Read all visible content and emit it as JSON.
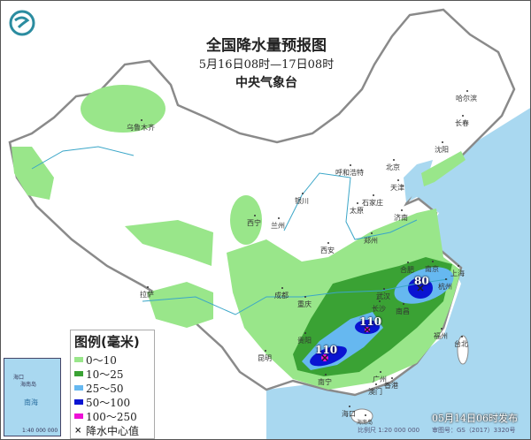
{
  "header": {
    "title": "全国降水量预报图",
    "period": "5月16日08时—17日08时",
    "agency": "中央气象台",
    "logo": "cma-logo"
  },
  "colors": {
    "sea": "#a9d8f0",
    "land": "#ffffff",
    "border": "#8a8a8a",
    "river": "#3aa6c8",
    "c0_10": "#99e68a",
    "c10_25": "#3aa234",
    "c25_50": "#66b8f0",
    "c50_100": "#0a14d2",
    "c100_250": "#ee10d6"
  },
  "legend": {
    "title": "图例(毫米)",
    "items": [
      {
        "label": "0～10",
        "color": "#99e68a"
      },
      {
        "label": "10～25",
        "color": "#3aa234"
      },
      {
        "label": "25～50",
        "color": "#66b8f0"
      },
      {
        "label": "50～100",
        "color": "#0a14d2"
      },
      {
        "label": "100～250",
        "color": "#ee10d6"
      }
    ],
    "center_label": "降水中心值"
  },
  "centers": [
    {
      "value": "110",
      "near": "贵阳-南宁"
    },
    {
      "value": "110",
      "near": "长沙"
    },
    {
      "value": "80",
      "near": "杭州"
    }
  ],
  "cities": [
    "乌鲁木齐",
    "哈尔滨",
    "长春",
    "沈阳",
    "呼和浩特",
    "北京",
    "天津",
    "银川",
    "石家庄",
    "太原",
    "济南",
    "西宁",
    "兰州",
    "郑州",
    "西安",
    "合肥",
    "南京",
    "上海",
    "成都",
    "武汉",
    "杭州",
    "拉萨",
    "重庆",
    "长沙",
    "南昌",
    "贵阳",
    "福州",
    "台北",
    "昆明",
    "南宁",
    "广州",
    "香港",
    "澳门",
    "海口",
    "海南岛"
  ],
  "inset": {
    "sea_label": "南海",
    "city": "海口",
    "island": "海南岛",
    "scale": "1:40 000 000"
  },
  "footer": {
    "issued": "05月14日06时发布",
    "scale": "比例尺 1:20 000 000",
    "review": "审图号：GS（2017）3320号"
  }
}
